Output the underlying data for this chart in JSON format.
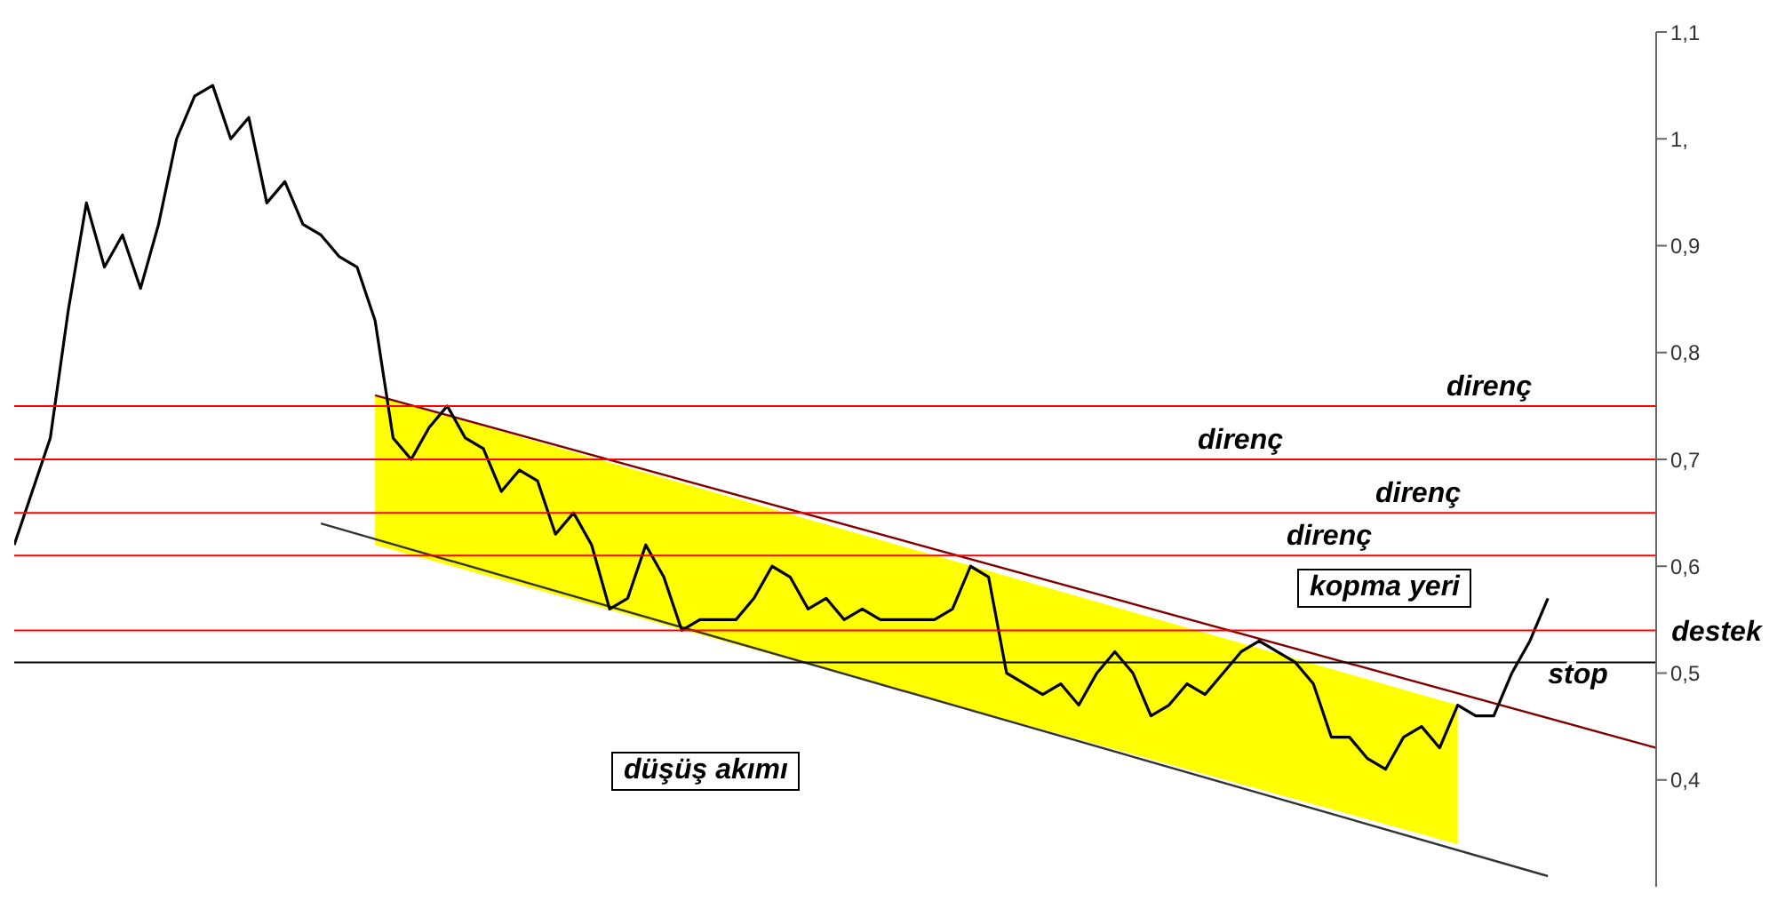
{
  "chart_data": {
    "type": "line",
    "categories": [
      null,
      null,
      null,
      null,
      null,
      null,
      null,
      null,
      null,
      null,
      null,
      null,
      null,
      null,
      null,
      null,
      null,
      null,
      null,
      null,
      null,
      null,
      null,
      null,
      null,
      null,
      null,
      null,
      null,
      null,
      null,
      null,
      null,
      null,
      null,
      null,
      null,
      null,
      null,
      null,
      null,
      null,
      null,
      null,
      null,
      null,
      null,
      null,
      null,
      null,
      null,
      null,
      null,
      null,
      null,
      null,
      null,
      null,
      null,
      null,
      null,
      null,
      null,
      null,
      null,
      null,
      null,
      null,
      null,
      null,
      null,
      null,
      null,
      null,
      null,
      null,
      null,
      null,
      null,
      null,
      null,
      null,
      null,
      null,
      null,
      null,
      null,
      null,
      null,
      null,
      null,
      null
    ],
    "series": [
      {
        "color": "#800000",
        "lower": [
          null,
          null,
          null,
          null,
          null,
          null,
          null,
          null,
          null,
          null,
          null,
          null,
          null,
          null,
          null,
          null,
          null,
          null,
          null,
          null,
          0.62,
          null,
          null,
          null,
          null,
          null,
          null,
          null,
          null,
          null,
          null,
          null,
          null,
          null,
          null,
          null,
          null,
          null,
          null,
          null,
          null,
          null,
          null,
          null,
          null,
          null,
          null,
          null,
          null,
          null,
          null,
          null,
          null,
          null,
          null,
          null,
          null,
          null,
          null,
          null,
          null,
          null,
          null,
          null,
          null,
          null,
          null,
          null,
          null,
          null,
          null,
          null,
          null,
          null,
          null,
          null,
          null,
          null,
          null,
          null,
          0.34,
          null,
          null,
          null,
          null,
          null,
          null,
          null,
          null,
          null,
          null,
          null
        ],
        "upper": [
          null,
          null,
          null,
          null,
          null,
          null,
          null,
          null,
          null,
          null,
          null,
          null,
          null,
          null,
          null,
          null,
          null,
          null,
          null,
          null,
          0.76,
          null,
          null,
          null,
          null,
          null,
          null,
          null,
          null,
          null,
          null,
          null,
          null,
          null,
          null,
          null,
          null,
          null,
          null,
          null,
          null,
          null,
          null,
          null,
          null,
          null,
          null,
          null,
          null,
          null,
          null,
          null,
          null,
          null,
          null,
          null,
          null,
          null,
          null,
          null,
          null,
          null,
          null,
          null,
          null,
          null,
          null,
          null,
          null,
          null,
          null,
          null,
          null,
          null,
          null,
          null,
          null,
          null,
          null,
          null,
          0.47,
          null,
          null,
          null,
          null,
          null,
          null,
          null,
          null,
          null,
          null,
          null
        ],
        "values": [
          null,
          null,
          null,
          null,
          null,
          null,
          null,
          null,
          null,
          null,
          null,
          null,
          null,
          null,
          null,
          null,
          null,
          null,
          null,
          null,
          0.76,
          null,
          null,
          null,
          null,
          null,
          null,
          null,
          null,
          null,
          null,
          null,
          null,
          null,
          null,
          null,
          null,
          null,
          null,
          null,
          null,
          null,
          null,
          null,
          null,
          null,
          null,
          null,
          null,
          null,
          null,
          null,
          null,
          null,
          null,
          null,
          null,
          null,
          null,
          null,
          null,
          null,
          null,
          null,
          null,
          null,
          null,
          null,
          null,
          null,
          null,
          null,
          null,
          null,
          null,
          null,
          null,
          null,
          null,
          null,
          null,
          null,
          null,
          null,
          null,
          null,
          null,
          null,
          null,
          null,
          null,
          0.43
        ]
      },
      {
        "color": "#333333",
        "values": [
          null,
          null,
          null,
          null,
          null,
          null,
          null,
          null,
          null,
          null,
          null,
          null,
          null,
          null,
          null,
          null,
          null,
          0.64,
          null,
          null,
          null,
          null,
          null,
          null,
          null,
          null,
          null,
          null,
          null,
          null,
          null,
          null,
          null,
          null,
          null,
          null,
          null,
          null,
          null,
          null,
          null,
          null,
          null,
          null,
          null,
          null,
          null,
          null,
          null,
          null,
          null,
          null,
          null,
          null,
          null,
          null,
          null,
          null,
          null,
          null,
          null,
          null,
          null,
          null,
          null,
          null,
          null,
          null,
          null,
          null,
          null,
          null,
          null,
          null,
          null,
          null,
          null,
          null,
          null,
          null,
          null,
          null,
          null,
          null,
          null,
          0.31,
          null,
          null,
          null,
          null,
          null,
          null
        ]
      },
      {
        "color": "#000000",
        "values": [
          0.62,
          0.67,
          0.72,
          0.84,
          0.94,
          0.88,
          0.91,
          0.86,
          0.92,
          1.0,
          1.04,
          1.05,
          1.0,
          1.02,
          0.94,
          0.96,
          0.92,
          0.91,
          0.89,
          0.88,
          0.83,
          0.72,
          0.7,
          0.73,
          0.75,
          0.72,
          0.71,
          0.67,
          0.69,
          0.68,
          0.63,
          0.65,
          0.62,
          0.56,
          0.57,
          0.62,
          0.59,
          0.54,
          0.55,
          0.55,
          0.55,
          0.57,
          0.6,
          0.59,
          0.56,
          0.57,
          0.55,
          0.56,
          0.55,
          0.55,
          0.55,
          0.55,
          0.56,
          0.6,
          0.59,
          0.5,
          0.49,
          0.48,
          0.49,
          0.47,
          0.5,
          0.52,
          0.5,
          0.46,
          0.47,
          0.49,
          0.48,
          0.5,
          0.52,
          0.53,
          0.52,
          0.51,
          0.49,
          0.44,
          0.44,
          0.42,
          0.41,
          0.44,
          0.45,
          0.43,
          0.47,
          0.46,
          0.46,
          0.5,
          0.53,
          0.57,
          null,
          null,
          null,
          null,
          null,
          null
        ]
      }
    ],
    "ylim": [
      0.3,
      1.1
    ],
    "yticks": [
      {
        "value": 0.4,
        "label": "0,4"
      },
      {
        "value": 0.5,
        "label": "0,5"
      },
      {
        "value": 0.6,
        "label": "0,6"
      },
      {
        "value": 0.7,
        "label": "0,7"
      },
      {
        "value": 0.8,
        "label": "0,8"
      },
      {
        "value": 0.9,
        "label": "0,9"
      },
      {
        "value": 1.0,
        "label": "1,"
      },
      {
        "value": 1.1,
        "label": "1,1"
      }
    ],
    "ref_lines": [
      {
        "axis": "y",
        "value": 0.75,
        "label": "direnç",
        "color": "#ff0000"
      },
      {
        "axis": "y",
        "value": 0.7,
        "label": "direnç",
        "color": "#ff0000"
      },
      {
        "axis": "y",
        "value": 0.65,
        "label": "direnç",
        "color": "#ff0000"
      },
      {
        "axis": "y",
        "value": 0.61,
        "label": "direnç",
        "color": "#ff0000"
      },
      {
        "axis": "y",
        "value": 0.54,
        "label": "destek",
        "color": "#ff0000"
      },
      {
        "axis": "y",
        "value": 0.51,
        "label": "stop",
        "color": "#000000"
      }
    ],
    "annotations": [
      "düşüş akımı",
      "kopma yeri"
    ],
    "grid": false,
    "legend": false
  }
}
